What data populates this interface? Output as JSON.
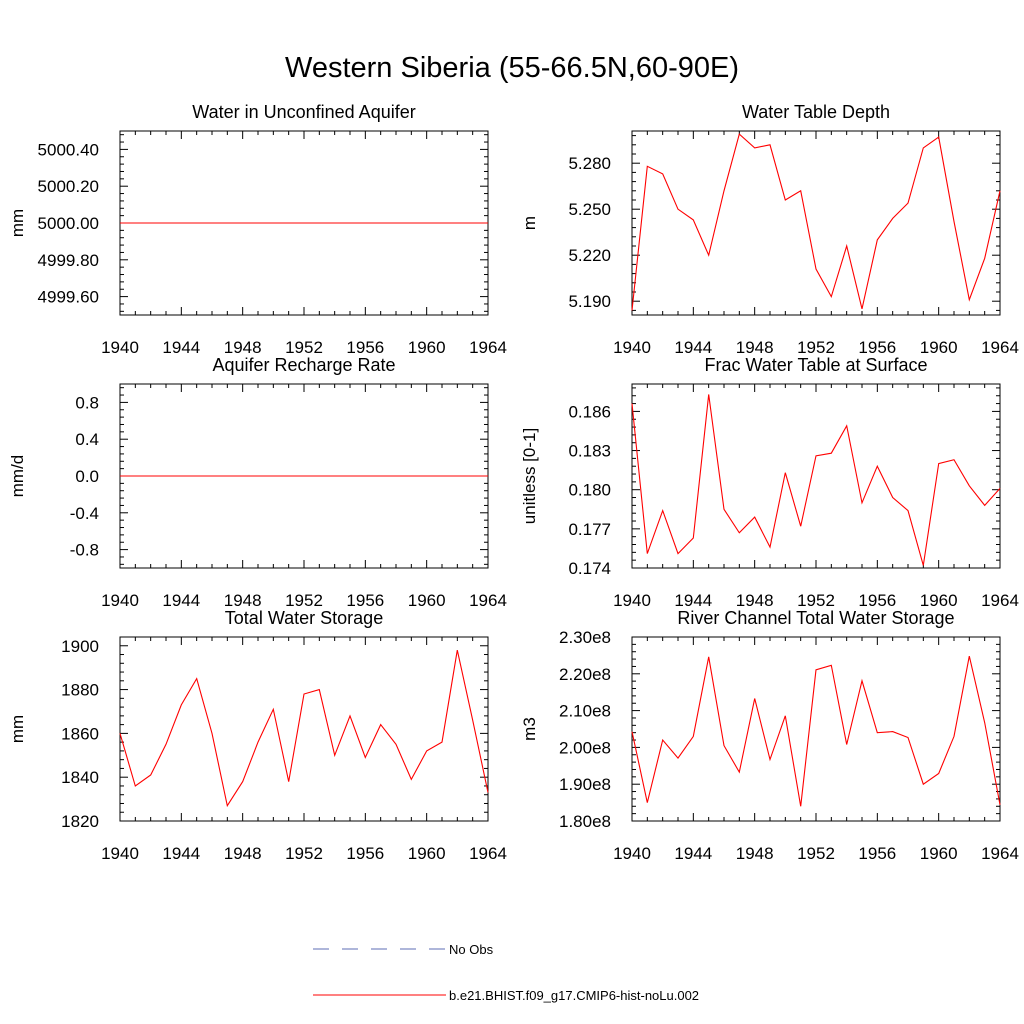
{
  "title": "Western Siberia (55-66.5N,60-90E)",
  "legend": {
    "position": "bottom-center",
    "entries": [
      {
        "label": "No Obs",
        "color": "#5e6cb4",
        "style": "dashed"
      },
      {
        "label": "b.e21.BHIST.f09_g17.CMIP6-hist-noLu.002",
        "color": "#ff0000",
        "style": "solid"
      }
    ]
  },
  "chart_data": [
    {
      "type": "line",
      "title": "Water in Unconfined Aquifer",
      "ylabel": "mm",
      "xlim": [
        1940,
        1964
      ],
      "ylim": [
        4999.5,
        5000.5
      ],
      "xticks": [
        "1940",
        "1944",
        "1948",
        "1952",
        "1956",
        "1960",
        "1964"
      ],
      "yticks": [
        "4999.60",
        "4999.80",
        "5000.00",
        "5000.20",
        "5000.40"
      ],
      "ytick_values": [
        4999.6,
        4999.8,
        5000.0,
        5000.2,
        5000.4
      ],
      "series": [
        {
          "color": "#ff0000",
          "x": [
            1940,
            1941,
            1942,
            1943,
            1944,
            1945,
            1946,
            1947,
            1948,
            1949,
            1950,
            1951,
            1952,
            1953,
            1954,
            1955,
            1956,
            1957,
            1958,
            1959,
            1960,
            1961,
            1962,
            1963,
            1964
          ],
          "y": [
            5000,
            5000,
            5000,
            5000,
            5000,
            5000,
            5000,
            5000,
            5000,
            5000,
            5000,
            5000,
            5000,
            5000,
            5000,
            5000,
            5000,
            5000,
            5000,
            5000,
            5000,
            5000,
            5000,
            5000,
            5000
          ]
        }
      ]
    },
    {
      "type": "line",
      "title": "Water Table Depth",
      "ylabel": "m",
      "xlim": [
        1940,
        1964
      ],
      "ylim": [
        5.181,
        5.301
      ],
      "xticks": [
        "1940",
        "1944",
        "1948",
        "1952",
        "1956",
        "1960",
        "1964"
      ],
      "yticks": [
        "5.190",
        "5.220",
        "5.250",
        "5.280"
      ],
      "ytick_values": [
        5.19,
        5.22,
        5.25,
        5.28
      ],
      "series": [
        {
          "color": "#ff0000",
          "x": [
            1940,
            1941,
            1942,
            1943,
            1944,
            1945,
            1946,
            1947,
            1948,
            1949,
            1950,
            1951,
            1952,
            1953,
            1954,
            1955,
            1956,
            1957,
            1958,
            1959,
            1960,
            1961,
            1962,
            1963,
            1964
          ],
          "y": [
            5.184,
            5.278,
            5.273,
            5.25,
            5.243,
            5.22,
            5.262,
            5.299,
            5.29,
            5.292,
            5.256,
            5.262,
            5.211,
            5.193,
            5.226,
            5.185,
            5.23,
            5.244,
            5.254,
            5.29,
            5.297,
            5.242,
            5.191,
            5.218,
            5.262
          ]
        }
      ]
    },
    {
      "type": "line",
      "title": "Aquifer Recharge Rate",
      "ylabel": "mm/d",
      "xlim": [
        1940,
        1964
      ],
      "ylim": [
        -1.0,
        1.0
      ],
      "xticks": [
        "1940",
        "1944",
        "1948",
        "1952",
        "1956",
        "1960",
        "1964"
      ],
      "yticks": [
        "-0.8",
        "-0.4",
        "0.0",
        "0.4",
        "0.8"
      ],
      "ytick_values": [
        -0.8,
        -0.4,
        0.0,
        0.4,
        0.8
      ],
      "series": [
        {
          "color": "#ff0000",
          "x": [
            1940,
            1941,
            1942,
            1943,
            1944,
            1945,
            1946,
            1947,
            1948,
            1949,
            1950,
            1951,
            1952,
            1953,
            1954,
            1955,
            1956,
            1957,
            1958,
            1959,
            1960,
            1961,
            1962,
            1963,
            1964
          ],
          "y": [
            0,
            0,
            0,
            0,
            0,
            0,
            0,
            0,
            0,
            0,
            0,
            0,
            0,
            0,
            0,
            0,
            0,
            0,
            0,
            0,
            0,
            0,
            0,
            0,
            0
          ]
        }
      ]
    },
    {
      "type": "line",
      "title": "Frac Water Table at Surface",
      "ylabel": "unitless [0-1]",
      "xlim": [
        1940,
        1964
      ],
      "ylim": [
        0.174,
        0.1881
      ],
      "xticks": [
        "1940",
        "1944",
        "1948",
        "1952",
        "1956",
        "1960",
        "1964"
      ],
      "yticks": [
        "0.174",
        "0.177",
        "0.180",
        "0.183",
        "0.186"
      ],
      "ytick_values": [
        0.174,
        0.177,
        0.18,
        0.183,
        0.186
      ],
      "series": [
        {
          "color": "#ff0000",
          "x": [
            1940,
            1941,
            1942,
            1943,
            1944,
            1945,
            1946,
            1947,
            1948,
            1949,
            1950,
            1951,
            1952,
            1953,
            1954,
            1955,
            1956,
            1957,
            1958,
            1959,
            1960,
            1961,
            1962,
            1963,
            1964
          ],
          "y": [
            0.1866,
            0.1751,
            0.1784,
            0.1751,
            0.1763,
            0.1873,
            0.1785,
            0.1767,
            0.1779,
            0.1756,
            0.1813,
            0.1772,
            0.1826,
            0.1828,
            0.1849,
            0.179,
            0.1818,
            0.1794,
            0.1784,
            0.1742,
            0.182,
            0.1823,
            0.1803,
            0.1788,
            0.1801
          ]
        }
      ]
    },
    {
      "type": "line",
      "title": "Total Water Storage",
      "ylabel": "mm",
      "xlim": [
        1940,
        1964
      ],
      "ylim": [
        1820,
        1904
      ],
      "xticks": [
        "1940",
        "1944",
        "1948",
        "1952",
        "1956",
        "1960",
        "1964"
      ],
      "yticks": [
        "1820",
        "1840",
        "1860",
        "1880",
        "1900"
      ],
      "ytick_values": [
        1820,
        1840,
        1860,
        1880,
        1900
      ],
      "series": [
        {
          "color": "#ff0000",
          "x": [
            1940,
            1941,
            1942,
            1943,
            1944,
            1945,
            1946,
            1947,
            1948,
            1949,
            1950,
            1951,
            1952,
            1953,
            1954,
            1955,
            1956,
            1957,
            1958,
            1959,
            1960,
            1961,
            1962,
            1963,
            1964
          ],
          "y": [
            1860,
            1836,
            1841,
            1855,
            1873,
            1885,
            1860,
            1827,
            1838,
            1856,
            1871,
            1838,
            1878,
            1880,
            1850,
            1868,
            1849,
            1864,
            1855,
            1839,
            1852,
            1856,
            1898,
            1866,
            1833
          ]
        }
      ]
    },
    {
      "type": "line",
      "title": "River Channel Total Water Storage",
      "ylabel": "m3",
      "xlim": [
        1940,
        1964
      ],
      "ylim": [
        180000000,
        230000000
      ],
      "xticks": [
        "1940",
        "1944",
        "1948",
        "1952",
        "1956",
        "1960",
        "1964"
      ],
      "yticks": [
        "1.80e8",
        "1.90e8",
        "2.00e8",
        "2.10e8",
        "2.20e8",
        "2.30e8"
      ],
      "ytick_values": [
        180000000,
        190000000,
        200000000,
        210000000,
        220000000,
        230000000
      ],
      "series": [
        {
          "color": "#ff0000",
          "x": [
            1940,
            1941,
            1942,
            1943,
            1944,
            1945,
            1946,
            1947,
            1948,
            1949,
            1950,
            1951,
            1952,
            1953,
            1954,
            1955,
            1956,
            1957,
            1958,
            1959,
            1960,
            1961,
            1962,
            1963,
            1964
          ],
          "y": [
            204300000,
            185000000,
            202000000,
            197100000,
            203000000,
            224600000,
            200500000,
            193300000,
            213300000,
            196700000,
            208600000,
            184000000,
            221100000,
            222300000,
            200800000,
            218100000,
            204000000,
            204300000,
            202700000,
            190000000,
            192900000,
            203000000,
            224800000,
            206700000,
            184400000
          ]
        }
      ]
    }
  ]
}
